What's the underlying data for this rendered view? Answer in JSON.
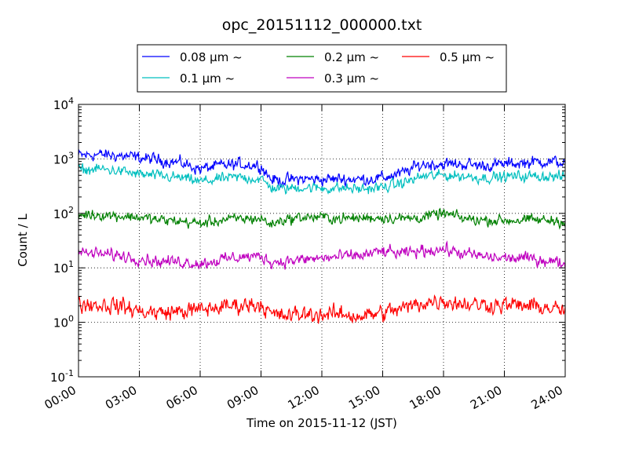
{
  "chart_data": {
    "type": "line",
    "title": "opc_20151112_000000.txt",
    "xlabel": "Time on 2015-11-12 (JST)",
    "ylabel": "Count / L",
    "x_unit": "hours",
    "xlim": [
      0,
      24
    ],
    "ylim": [
      0.1,
      10000
    ],
    "y_scale": "log",
    "grid": true,
    "legend_placement": "top (above plot)",
    "x_ticks": [
      {
        "value": 0,
        "label": "00:00"
      },
      {
        "value": 3,
        "label": "03:00"
      },
      {
        "value": 6,
        "label": "06:00"
      },
      {
        "value": 9,
        "label": "09:00"
      },
      {
        "value": 12,
        "label": "12:00"
      },
      {
        "value": 15,
        "label": "15:00"
      },
      {
        "value": 18,
        "label": "18:00"
      },
      {
        "value": 21,
        "label": "21:00"
      },
      {
        "value": 24,
        "label": "24:00"
      }
    ],
    "y_ticks": [
      {
        "value": 0.1,
        "base": "10",
        "exp": "-1"
      },
      {
        "value": 1,
        "base": "10",
        "exp": "0"
      },
      {
        "value": 10,
        "base": "10",
        "exp": "1"
      },
      {
        "value": 100,
        "base": "10",
        "exp": "2"
      },
      {
        "value": 1000,
        "base": "10",
        "exp": "3"
      },
      {
        "value": 10000,
        "base": "10",
        "exp": "4"
      }
    ],
    "series": [
      {
        "name": "0.08 μm ~",
        "color": "#0000ff",
        "noise": 0.1,
        "x": [
          0,
          1,
          2,
          3,
          4,
          5,
          6,
          7,
          8,
          9,
          9.5,
          10,
          11,
          12,
          13,
          14,
          15,
          16,
          16.5,
          17,
          18,
          19,
          20,
          21,
          22,
          23,
          24
        ],
        "y": [
          1150,
          1200,
          1150,
          1050,
          950,
          850,
          650,
          750,
          800,
          750,
          420,
          400,
          430,
          420,
          430,
          420,
          450,
          550,
          680,
          800,
          800,
          800,
          750,
          800,
          850,
          900,
          850
        ]
      },
      {
        "name": "0.1 μm ~",
        "color": "#00bfbf",
        "noise": 0.09,
        "x": [
          0,
          1,
          2,
          3,
          4,
          5,
          6,
          7,
          8,
          9,
          9.5,
          10,
          11,
          12,
          13,
          14,
          15,
          16,
          16.5,
          17,
          18,
          19,
          20,
          21,
          22,
          23,
          24
        ],
        "y": [
          620,
          650,
          600,
          520,
          480,
          450,
          380,
          430,
          460,
          420,
          300,
          280,
          300,
          290,
          290,
          280,
          300,
          360,
          420,
          480,
          500,
          480,
          450,
          470,
          480,
          480,
          460
        ]
      },
      {
        "name": "0.2 μm ~",
        "color": "#008000",
        "noise": 0.09,
        "x": [
          0,
          1,
          2,
          3,
          4,
          5,
          6,
          7,
          8,
          9,
          9.5,
          10,
          11,
          12,
          13,
          14,
          15,
          16,
          17,
          18,
          19,
          20,
          21,
          22,
          23,
          24
        ],
        "y": [
          95,
          95,
          90,
          85,
          75,
          72,
          65,
          75,
          80,
          80,
          62,
          75,
          85,
          85,
          80,
          82,
          85,
          80,
          85,
          100,
          80,
          75,
          75,
          75,
          75,
          72
        ]
      },
      {
        "name": "0.3 μm ~",
        "color": "#bf00bf",
        "noise": 0.1,
        "x": [
          0,
          1,
          2,
          3,
          4,
          5,
          6,
          7,
          8,
          9,
          9.5,
          10,
          11,
          12,
          13,
          14,
          15,
          16,
          17,
          18,
          19,
          20,
          21,
          22,
          23,
          24
        ],
        "y": [
          19,
          18,
          17,
          15,
          13,
          13,
          12,
          14,
          16,
          16,
          13,
          13,
          14,
          15,
          16,
          17,
          20,
          18,
          21,
          22,
          18,
          16,
          15,
          15,
          14,
          12
        ]
      },
      {
        "name": "0.5 μm ~",
        "color": "#ff0000",
        "noise": 0.14,
        "x": [
          0,
          1,
          2,
          3,
          4,
          5,
          6,
          7,
          8,
          9,
          9.5,
          10,
          11,
          12,
          13,
          14,
          15,
          16,
          17,
          18,
          19,
          20,
          21,
          22,
          23,
          24
        ],
        "y": [
          2.2,
          2.1,
          2.0,
          1.6,
          1.5,
          1.6,
          1.7,
          1.9,
          2.1,
          2.2,
          1.4,
          1.3,
          1.4,
          1.4,
          1.4,
          1.3,
          1.5,
          1.8,
          2.3,
          2.5,
          2.2,
          2.1,
          2.1,
          2.0,
          1.9,
          1.6
        ]
      }
    ]
  }
}
